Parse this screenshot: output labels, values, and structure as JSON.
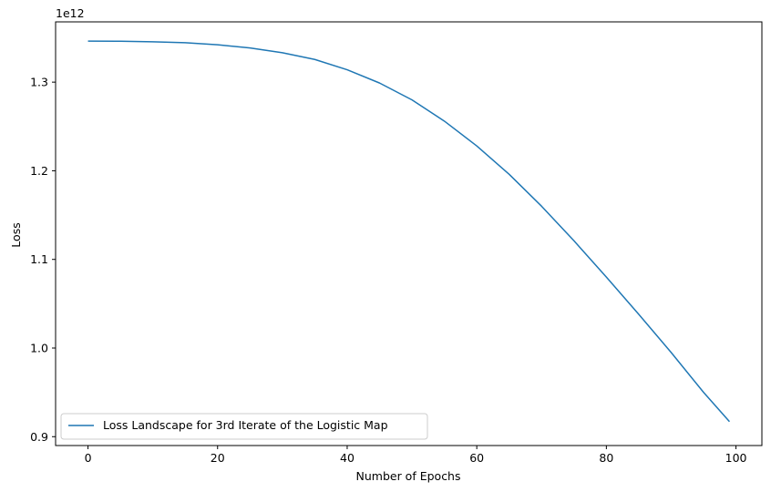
{
  "chart_data": {
    "type": "line",
    "title": "",
    "xlabel": "Number of Epochs",
    "ylabel": "Loss",
    "y_offset_text": "1e12",
    "y_scale_factor": 1000000000000.0,
    "xlim": [
      -5,
      104
    ],
    "ylim": [
      0.89,
      1.368
    ],
    "x_ticks": [
      0,
      20,
      40,
      60,
      80,
      100
    ],
    "x_tick_labels": [
      "0",
      "20",
      "40",
      "60",
      "80",
      "100"
    ],
    "y_ticks": [
      0.9,
      1.0,
      1.1,
      1.2,
      1.3
    ],
    "y_tick_labels": [
      "0.9",
      "1.0",
      "1.1",
      "1.2",
      "1.3"
    ],
    "grid": false,
    "legend_position": "lower-left",
    "series": [
      {
        "name": "Loss Landscape for 3rd Iterate of the Logistic Map",
        "color": "#1f77b4",
        "x": [
          0,
          5,
          10,
          15,
          20,
          25,
          30,
          35,
          40,
          45,
          50,
          55,
          60,
          65,
          70,
          75,
          80,
          85,
          90,
          95,
          99
        ],
        "y": [
          1.3463,
          1.3461,
          1.3455,
          1.3445,
          1.3422,
          1.3386,
          1.3332,
          1.3256,
          1.314,
          1.299,
          1.28,
          1.256,
          1.228,
          1.196,
          1.16,
          1.121,
          1.08,
          1.038,
          0.995,
          0.95,
          0.917
        ]
      }
    ]
  }
}
